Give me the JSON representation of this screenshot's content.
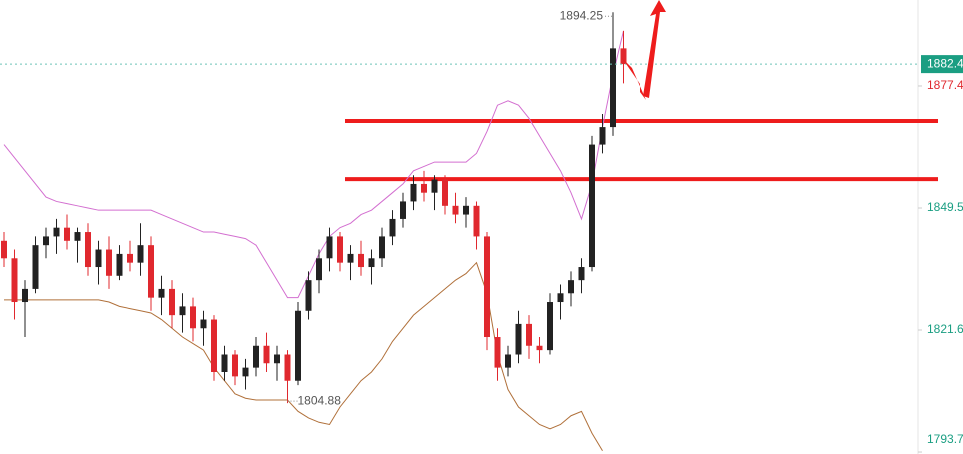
{
  "chart_data": {
    "type": "candlestick",
    "up_color": "#222222",
    "down_color": "#e0282e",
    "ylim": [
      1793.25,
      1897.06
    ],
    "yticks": [
      1877.4,
      1849.5,
      1821.6,
      1793.7
    ],
    "ytick_colors": [
      "#e0282e",
      "#1a9e82",
      "#1a9e82",
      "#1a9e82"
    ],
    "last_price": 1882.4,
    "high": 1894.25,
    "low": 1804.88,
    "horizontal_lines": [
      1869.4,
      1856.1
    ],
    "open": [
      1842,
      1838,
      1828,
      1831,
      1841,
      1843,
      1845,
      1842,
      1844,
      1836,
      1840,
      1834,
      1839,
      1837,
      1841,
      1829,
      1831,
      1825,
      1827,
      1822,
      1824,
      1812,
      1816,
      1811,
      1813,
      1818,
      1814,
      1816,
      1810,
      1826,
      1833,
      1838,
      1843,
      1837,
      1839,
      1836,
      1838,
      1843,
      1847,
      1851,
      1855,
      1853,
      1856,
      1850,
      1848,
      1850,
      1843,
      1820,
      1813,
      1816,
      1823,
      1818,
      1817,
      1828,
      1830,
      1833,
      1836,
      1864,
      1868,
      1886
    ],
    "high_values": [
      1844,
      1840,
      1833,
      1843,
      1845,
      1847,
      1848,
      1845,
      1846,
      1842,
      1843,
      1841,
      1842,
      1846,
      1843,
      1834,
      1833,
      1830,
      1829,
      1826,
      1825,
      1818,
      1817,
      1815,
      1820,
      1821,
      1818,
      1817,
      1828,
      1835,
      1840,
      1845,
      1844,
      1841,
      1842,
      1840,
      1845,
      1849,
      1853,
      1857,
      1858,
      1857,
      1857,
      1853,
      1852,
      1851,
      1844,
      1822,
      1818,
      1826,
      1825,
      1820,
      1830,
      1832,
      1835,
      1838,
      1866,
      1871,
      1894.25,
      1890
    ],
    "low_values": [
      1836,
      1824,
      1820,
      1830,
      1838,
      1839,
      1840,
      1837,
      1834,
      1832,
      1831,
      1833,
      1835,
      1834,
      1826,
      1825,
      1822,
      1821,
      1819,
      1818,
      1810,
      1810,
      1809,
      1808,
      1811,
      1812,
      1810,
      1804.88,
      1809,
      1824,
      1830,
      1835,
      1835,
      1833,
      1834,
      1832,
      1836,
      1841,
      1845,
      1849,
      1851,
      1849,
      1848,
      1846,
      1845,
      1840,
      1817,
      1810,
      1811,
      1814,
      1815,
      1814,
      1816,
      1824,
      1827,
      1830,
      1835,
      1862,
      1866,
      1878
    ],
    "close": [
      1838,
      1828,
      1831,
      1841,
      1843,
      1845,
      1842,
      1844,
      1836,
      1840,
      1834,
      1839,
      1837,
      1841,
      1829,
      1831,
      1825,
      1827,
      1822,
      1824,
      1812,
      1816,
      1811,
      1813,
      1818,
      1814,
      1816,
      1810,
      1826,
      1833,
      1838,
      1843,
      1837,
      1839,
      1836,
      1838,
      1843,
      1847,
      1851,
      1855,
      1853,
      1856,
      1850,
      1848,
      1850,
      1843,
      1820,
      1813,
      1816,
      1823,
      1818,
      1817,
      1828,
      1830,
      1833,
      1836,
      1864,
      1868,
      1886,
      1882.4
    ],
    "bands": [
      {
        "color": "#d36fd0",
        "values": [
          1864,
          1861,
          1858,
          1855,
          1852,
          1851,
          1850.5,
          1850,
          1849.5,
          1849,
          1849,
          1849,
          1849,
          1849,
          1849,
          1848,
          1847,
          1846,
          1845,
          1844,
          1844,
          1843.5,
          1843,
          1842.5,
          1841,
          1837,
          1833,
          1829,
          1829,
          1834,
          1839,
          1843,
          1845,
          1846,
          1848,
          1849,
          1851,
          1853,
          1855,
          1858,
          1859,
          1860,
          1860,
          1860,
          1860,
          1862,
          1867,
          1873,
          1874,
          1873,
          1870,
          1866,
          1862,
          1858,
          1853,
          1847,
          1855,
          1868,
          1880,
          1890
        ]
      },
      {
        "color": "#b0703a",
        "values": [
          1828.5,
          1828.5,
          1828.5,
          1828.5,
          1828.5,
          1828.5,
          1828.5,
          1828.5,
          1828.5,
          1828.5,
          1828,
          1827,
          1826.5,
          1826,
          1825.5,
          1824,
          1822,
          1820,
          1818.5,
          1817,
          1813,
          1810,
          1807,
          1806,
          1805.6,
          1805.6,
          1805.6,
          1805.6,
          1803,
          1801.5,
          1800.5,
          1800,
          1804,
          1807,
          1810,
          1812,
          1815,
          1819,
          1822,
          1825,
          1827,
          1829,
          1831,
          1833,
          1834.5,
          1837,
          1830,
          1816,
          1808,
          1804,
          1802,
          1800,
          1799,
          1800,
          1802,
          1803,
          1798,
          1794,
          null,
          null
        ]
      }
    ]
  }
}
